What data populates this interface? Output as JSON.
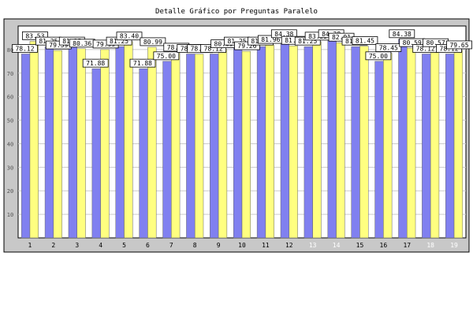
{
  "chart_data": {
    "type": "bar",
    "title": "Detalle Gráfico por Preguntas Paralelo",
    "xlabel": "",
    "ylabel": "",
    "ylim": [
      0,
      90
    ],
    "yticks": [
      10,
      20,
      30,
      40,
      50,
      60,
      70,
      80
    ],
    "grid": true,
    "legend": "none",
    "categories": [
      "1",
      "2",
      "3",
      "4",
      "5",
      "6",
      "7",
      "8",
      "9",
      "10",
      "11",
      "12",
      "13",
      "14",
      "15",
      "16",
      "17",
      "18",
      "19"
    ],
    "series": [
      {
        "color": "#8080f0",
        "values": [
          78.12,
          81.25,
          81.25,
          71.88,
          81.25,
          71.88,
          75.0,
          78.12,
          78.12,
          81.25,
          81.25,
          84.38,
          81.25,
          84.38,
          81.25,
          75.0,
          84.38,
          78.12,
          78.12
        ],
        "labels": [
          "78.12",
          "81.25",
          "81.25",
          "71.88",
          "81.25",
          "71.88",
          "75.00",
          "78.12",
          "78.12",
          "81.25",
          "81.25",
          "84.38",
          "81.25",
          "84.38",
          "81.25",
          "75.00",
          "84.38",
          "78.12",
          "78.12"
        ]
      },
      {
        "color": "#ffff80",
        "values": [
          83.53,
          79.59,
          80.36,
          79.99,
          83.4,
          80.99,
          78.65,
          78.05,
          80.09,
          79.26,
          81.96,
          81.57,
          83.35,
          82.91,
          81.45,
          78.45,
          80.59,
          80.57,
          79.65
        ],
        "labels": [
          "83.53",
          "79.59",
          "80.36",
          "79.99",
          "83.40",
          "80.99",
          "78.65",
          "78.05",
          "80.09",
          "79.26",
          "81.96",
          "81.57",
          "83.35",
          "82.91",
          "81.45",
          "78.45",
          "80.59",
          "80.57",
          "79.65"
        ]
      }
    ],
    "colors": {
      "frame_bg": "#c8c8c8",
      "plot_bg": "#ffffff",
      "grid": "#cccccc",
      "axis_text": "#000000",
      "muted_tick_text": "#ffffff"
    },
    "muted_tick_categories": [
      "13",
      "14",
      "18",
      "19"
    ]
  }
}
